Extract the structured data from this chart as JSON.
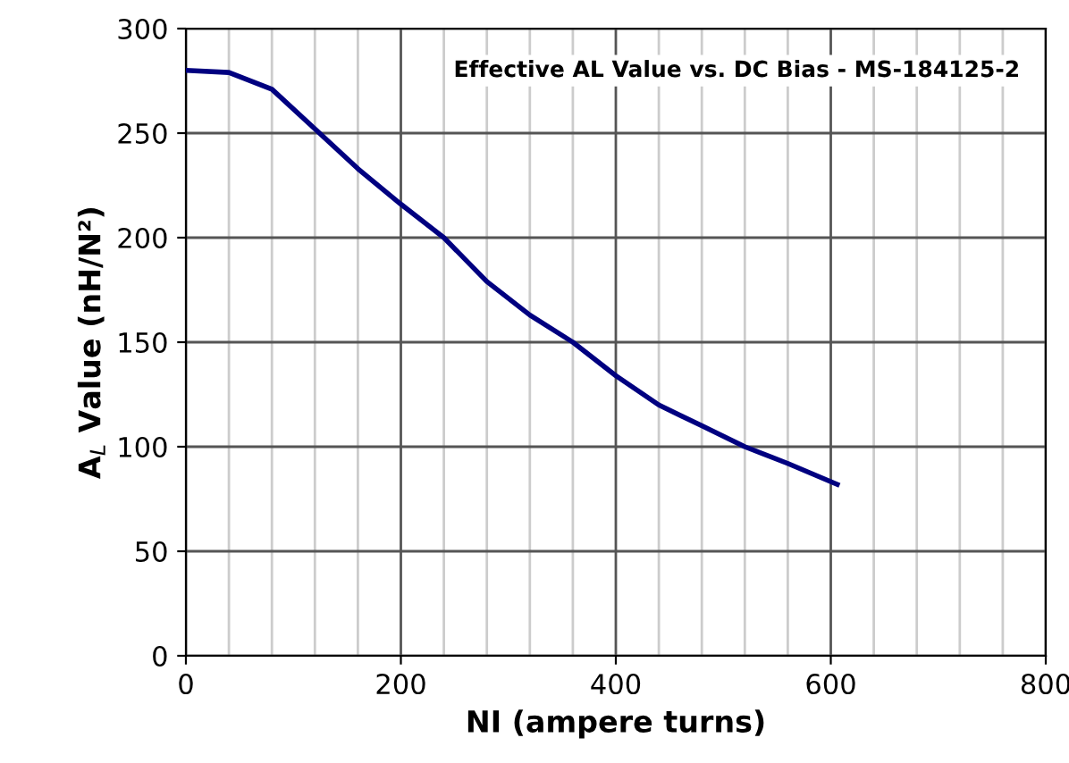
{
  "chart_data": {
    "type": "line",
    "title": "Effective AL Value vs. DC Bias - MS-184125-2",
    "xlabel": "NI (ampere turns)",
    "ylabel": "A$_{L}$ Value (nH/N²)",
    "x": [
      0,
      40,
      80,
      120,
      160,
      200,
      240,
      280,
      320,
      360,
      400,
      440,
      480,
      520,
      560,
      606
    ],
    "series": [
      {
        "color": "#000080",
        "values": [
          280,
          279,
          271,
          252,
          233,
          216,
          200,
          179,
          163,
          150,
          134,
          120,
          110,
          100,
          92,
          82
        ]
      }
    ],
    "xlim": [
      0,
      800
    ],
    "ylim": [
      0,
      300
    ],
    "xticks": [
      0,
      200,
      400,
      600,
      800
    ],
    "yticks": [
      0,
      50,
      100,
      150,
      200,
      250,
      300
    ],
    "grid": true,
    "marker": "none",
    "line_style": "solid"
  }
}
